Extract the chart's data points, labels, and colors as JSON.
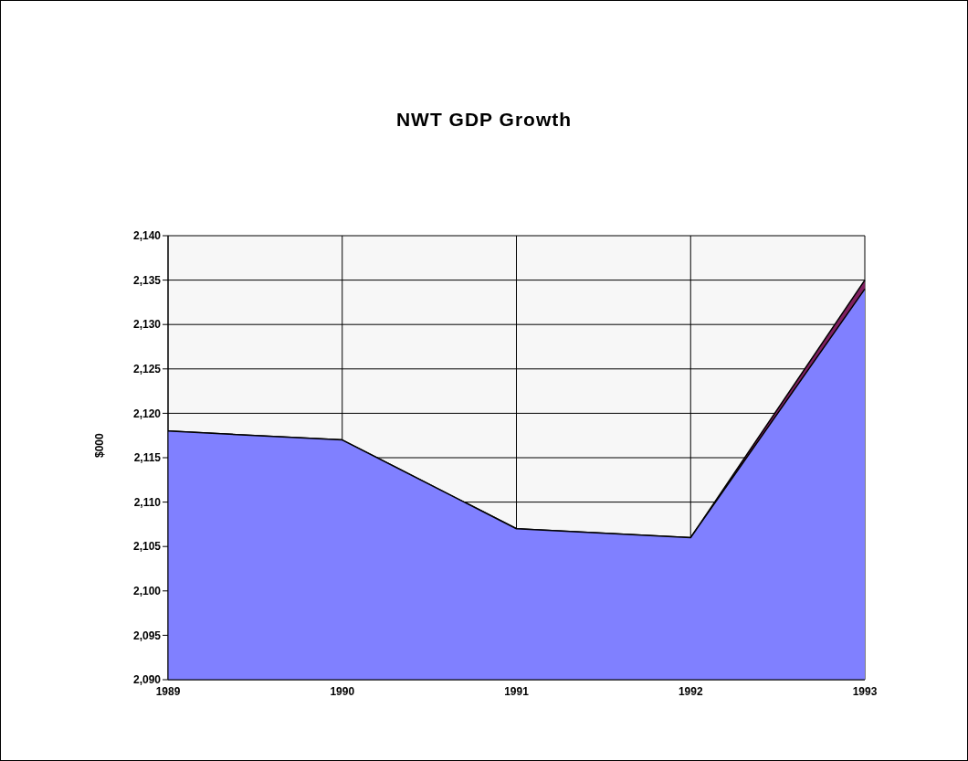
{
  "chart_data": {
    "type": "area",
    "title": "NWT GDP Growth",
    "ylabel": "$000",
    "categories": [
      "1989",
      "1990",
      "1991",
      "1992",
      "1993"
    ],
    "series": [
      {
        "color": "#802060",
        "values": [
          2118,
          2117,
          2107,
          2106,
          2135
        ]
      },
      {
        "color": "#8080ff",
        "values": [
          2118,
          2117,
          2107,
          2106,
          2134
        ]
      }
    ],
    "ylim": [
      2090,
      2140
    ],
    "yticks": [
      {
        "value": 2090,
        "label": "2,090"
      },
      {
        "value": 2095,
        "label": "2,095"
      },
      {
        "value": 2100,
        "label": "2,100"
      },
      {
        "value": 2105,
        "label": "2,105"
      },
      {
        "value": 2110,
        "label": "2,110"
      },
      {
        "value": 2115,
        "label": "2,115"
      },
      {
        "value": 2120,
        "label": "2,120"
      },
      {
        "value": 2125,
        "label": "2,125"
      },
      {
        "value": 2130,
        "label": "2,130"
      },
      {
        "value": 2135,
        "label": "2,135"
      },
      {
        "value": 2140,
        "label": "2,140"
      }
    ],
    "grid": true,
    "legend": false
  }
}
